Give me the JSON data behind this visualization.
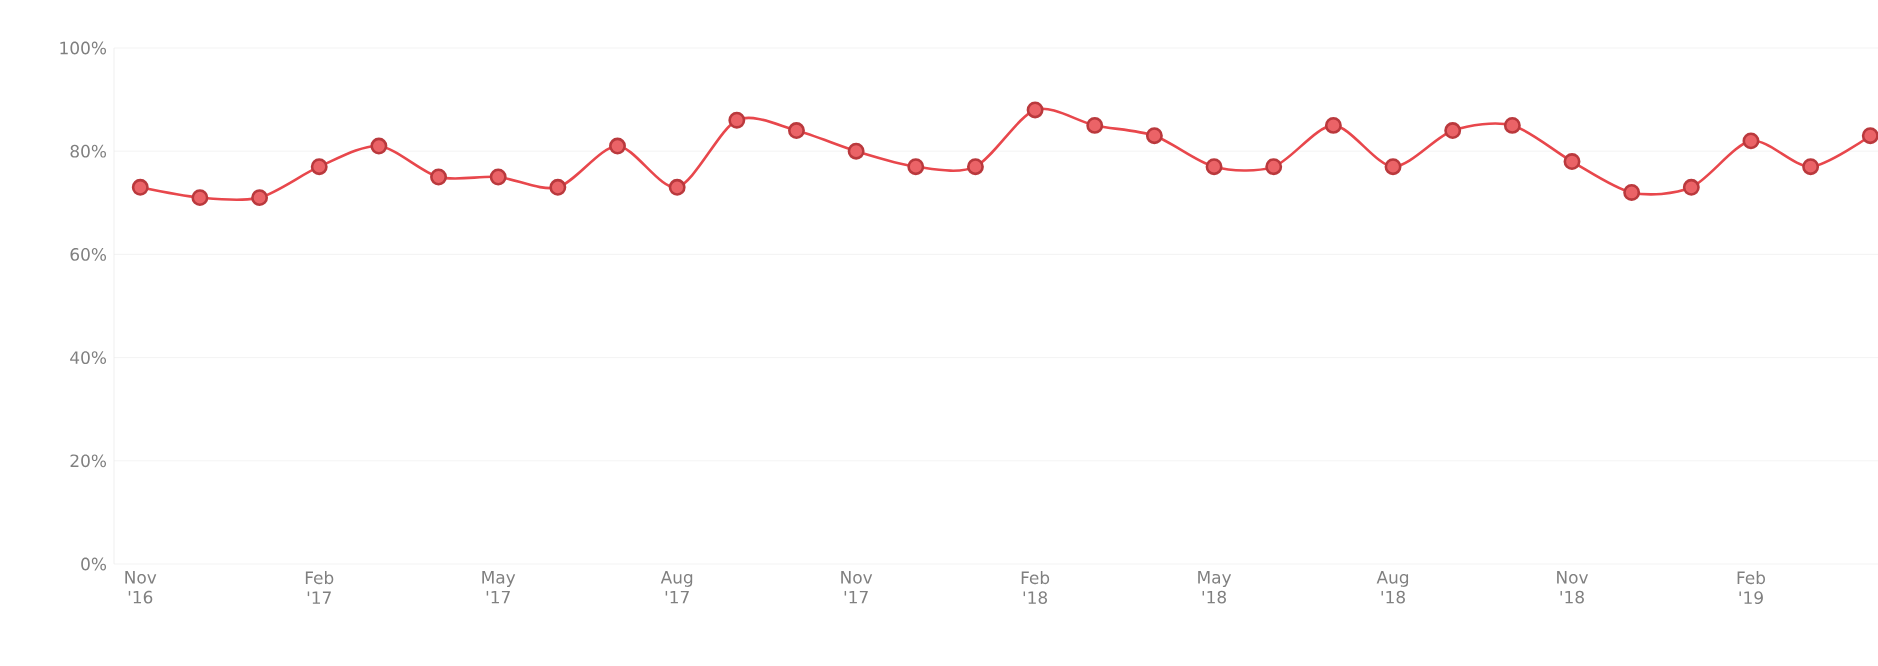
{
  "chart_data": {
    "type": "line",
    "categories": [
      "Nov '16",
      null,
      null,
      "Feb '17",
      null,
      null,
      "May '17",
      null,
      null,
      "Aug '17",
      null,
      null,
      "Nov '17",
      null,
      null,
      "Feb '18",
      null,
      null,
      "May '18",
      null,
      null,
      "Aug '18",
      null,
      null,
      "Nov '18",
      null,
      null,
      "Feb '19",
      null,
      null
    ],
    "series": [
      {
        "color": "#e8474c",
        "values": [
          73,
          71,
          71,
          77,
          81,
          75,
          75,
          73,
          81,
          73,
          86,
          84,
          80,
          77,
          77,
          88,
          85,
          83,
          77,
          77,
          85,
          77,
          84,
          85,
          78,
          72,
          73,
          82,
          77,
          83
        ]
      }
    ],
    "ylim": [
      0,
      100
    ],
    "yticks": [
      {
        "value": 0,
        "label": "0%"
      },
      {
        "value": 20,
        "label": "20%"
      },
      {
        "value": 40,
        "label": "40%"
      },
      {
        "value": 60,
        "label": "60%"
      },
      {
        "value": 80,
        "label": "80%"
      },
      {
        "value": 100,
        "label": "100%"
      }
    ],
    "grid": "y",
    "marker": "circle",
    "line_style": "solid"
  }
}
